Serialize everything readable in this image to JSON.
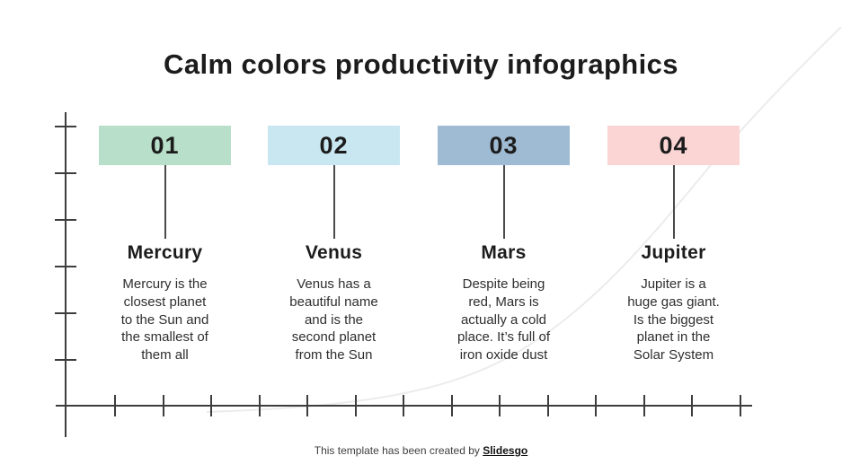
{
  "slide": {
    "title": "Calm colors productivity infographics",
    "footer": {
      "text": "This template has been created by ",
      "brand": "Slidesgo"
    }
  },
  "items": [
    {
      "number": "01",
      "color": "#b8dfca",
      "planet": "Mercury",
      "description": "Mercury is the\nclosest planet\nto the Sun and\nthe smallest of\nthem all"
    },
    {
      "number": "02",
      "color": "#c9e7f1",
      "planet": "Venus",
      "description": "Venus has a\nbeautiful name\nand is the\nsecond planet\nfrom the Sun"
    },
    {
      "number": "03",
      "color": "#9fbad3",
      "planet": "Mars",
      "description": "Despite being\nred, Mars is\nactually a cold\nplace. It’s full of\niron oxide dust"
    },
    {
      "number": "04",
      "color": "#fbd4d4",
      "planet": "Jupiter",
      "description": "Jupiter is a\nhuge gas giant.\nIs the biggest\nplanet in the\nSolar System"
    }
  ],
  "axis": {
    "v_tick_count": 6,
    "h_tick_count": 14,
    "color": "#3d3d3d"
  },
  "decor": {
    "curve_color": "#ececec"
  }
}
